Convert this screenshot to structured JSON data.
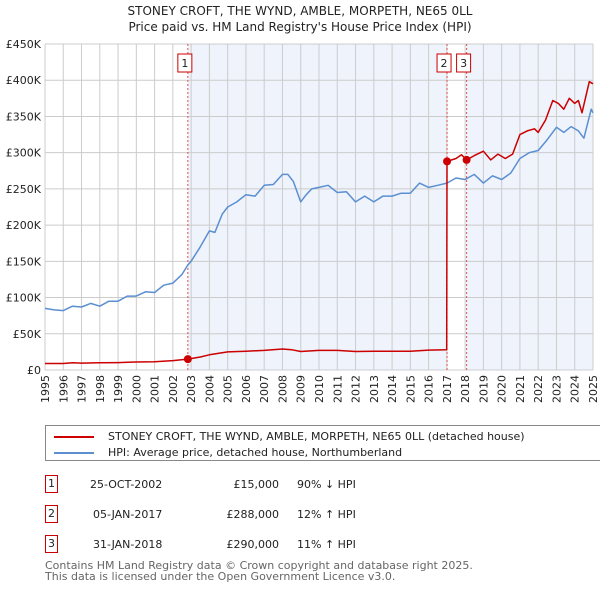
{
  "chart_data": {
    "type": "line",
    "title": "STONEY CROFT, THE WYND, AMBLE, MORPETH, NE65 0LL",
    "subtitle": "Price paid vs. HM Land Registry's House Price Index (HPI)",
    "xlim": [
      1995,
      2025
    ],
    "ylim": [
      0,
      450000
    ],
    "y_ticks": [
      0,
      50000,
      100000,
      150000,
      200000,
      250000,
      300000,
      350000,
      400000,
      450000
    ],
    "y_tick_labels": [
      "£0",
      "£50K",
      "£100K",
      "£150K",
      "£200K",
      "£250K",
      "£300K",
      "£350K",
      "£400K",
      "£450K"
    ],
    "x_ticks": [
      1995,
      1996,
      1997,
      1998,
      1999,
      2000,
      2001,
      2002,
      2003,
      2004,
      2005,
      2006,
      2007,
      2008,
      2009,
      2010,
      2011,
      2012,
      2013,
      2014,
      2015,
      2016,
      2017,
      2018,
      2019,
      2020,
      2021,
      2022,
      2023,
      2024,
      2025
    ],
    "grid": true,
    "colors": {
      "property": "#cc0000",
      "hpi": "#5b8fd0",
      "shade": "#eef3fc",
      "grid": "#cccccc"
    },
    "series": [
      {
        "name": "STONEY CROFT, THE WYND, AMBLE, MORPETH, NE65 0LL (detached house)",
        "color": "#cc0000",
        "x": [
          1995,
          1996,
          1996.5,
          1997,
          1998,
          1999,
          2000,
          2001,
          2002,
          2002.82,
          2003.5,
          2004,
          2005,
          2006,
          2007,
          2008,
          2008.5,
          2009,
          2010,
          2011,
          2012,
          2013,
          2014,
          2015,
          2016,
          2016.99,
          2017.01,
          2017.5,
          2017.8,
          2018.08,
          2018.5,
          2019,
          2019.4,
          2019.8,
          2020.2,
          2020.6,
          2021,
          2021.4,
          2021.8,
          2022,
          2022.4,
          2022.8,
          2023.1,
          2023.4,
          2023.7,
          2024,
          2024.2,
          2024.4,
          2024.8,
          2025
        ],
        "y": [
          9000,
          9000,
          10000,
          9500,
          10000,
          10200,
          11000,
          11500,
          13000,
          15000,
          18000,
          21000,
          25000,
          26000,
          27000,
          29000,
          28000,
          25500,
          27000,
          27000,
          25500,
          26000,
          26000,
          26000,
          27500,
          28000,
          288000,
          292000,
          297000,
          290000,
          296000,
          302000,
          290000,
          298000,
          292000,
          298000,
          325000,
          330000,
          333000,
          328000,
          345000,
          372000,
          368000,
          360000,
          375000,
          368000,
          372000,
          355000,
          398000,
          395000
        ]
      },
      {
        "name": "HPI: Average price, detached house, Northumberland",
        "color": "#5b8fd0",
        "x": [
          1995,
          1995.5,
          1996,
          1996.5,
          1997,
          1997.5,
          1998,
          1998.5,
          1999,
          1999.5,
          2000,
          2000.5,
          2001,
          2001.5,
          2002,
          2002.5,
          2002.82,
          2003,
          2003.5,
          2004,
          2004.3,
          2004.7,
          2005,
          2005.5,
          2006,
          2006.5,
          2007,
          2007.5,
          2008,
          2008.3,
          2008.6,
          2009,
          2009.3,
          2009.6,
          2010,
          2010.5,
          2011,
          2011.5,
          2012,
          2012.5,
          2013,
          2013.5,
          2014,
          2014.5,
          2015,
          2015.5,
          2016,
          2016.5,
          2017,
          2017.5,
          2018,
          2018.5,
          2019,
          2019.5,
          2020,
          2020.5,
          2021,
          2021.5,
          2022,
          2022.5,
          2023,
          2023.4,
          2023.8,
          2024.2,
          2024.5,
          2024.9,
          2025
        ],
        "y": [
          85000,
          83000,
          82000,
          88000,
          87000,
          92000,
          88000,
          95000,
          95000,
          102000,
          102000,
          108000,
          107000,
          117000,
          120000,
          132000,
          145000,
          150000,
          170000,
          192000,
          190000,
          215000,
          225000,
          232000,
          242000,
          240000,
          255000,
          256000,
          270000,
          270000,
          260000,
          232000,
          242000,
          250000,
          252000,
          255000,
          245000,
          246000,
          232000,
          240000,
          232000,
          240000,
          240000,
          244000,
          244000,
          258000,
          252000,
          255000,
          258000,
          265000,
          263000,
          270000,
          258000,
          268000,
          263000,
          272000,
          292000,
          300000,
          303000,
          318000,
          335000,
          328000,
          336000,
          330000,
          320000,
          360000,
          355000
        ]
      }
    ],
    "sales": [
      {
        "label": "1",
        "x": 2002.82,
        "value": 15000,
        "date": "25-OCT-2002",
        "price": "£15,000",
        "hpi": "90% ↓ HPI"
      },
      {
        "label": "2",
        "x": 2017.01,
        "value": 288000,
        "date": "05-JAN-2017",
        "price": "£288,000",
        "hpi": "12% ↑ HPI"
      },
      {
        "label": "3",
        "x": 2018.08,
        "value": 290000,
        "date": "31-JAN-2018",
        "price": "£290,000",
        "hpi": "11% ↑ HPI"
      }
    ],
    "legend_placement": "below"
  },
  "footer": {
    "line1": "Contains HM Land Registry data © Crown copyright and database right 2025.",
    "line2": "This data is licensed under the Open Government Licence v3.0."
  }
}
